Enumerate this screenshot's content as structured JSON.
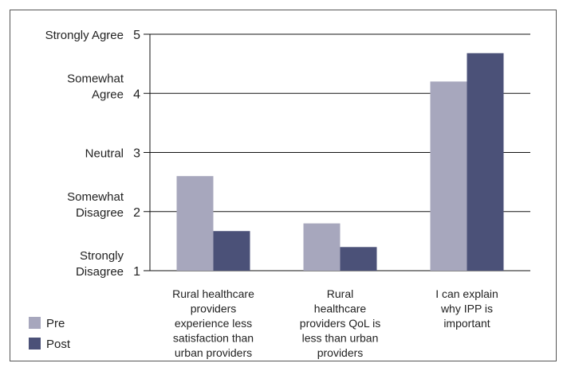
{
  "chart_data": {
    "type": "bar",
    "categories": [
      "Rural healthcare providers experience less satisfaction than urban providers",
      "Rural healthcare providers QoL is less than urban providers",
      "I can explain why IPP is important"
    ],
    "category_lines": [
      [
        "Rural healthcare",
        "providers",
        "experience less",
        "satisfaction than",
        "urban providers"
      ],
      [
        "Rural",
        "healthcare",
        "providers QoL is",
        "less than urban",
        "providers"
      ],
      [
        "I can explain",
        "why IPP is",
        "important"
      ]
    ],
    "series": [
      {
        "name": "Pre",
        "values": [
          2.6,
          1.8,
          4.2
        ],
        "color": "#a7a7bd"
      },
      {
        "name": "Post",
        "values": [
          1.67,
          1.4,
          4.68
        ],
        "color": "#4b5178"
      }
    ],
    "ylim": [
      1,
      5
    ],
    "yticks": [
      "1",
      "2",
      "3",
      "4",
      "5"
    ],
    "y_category_labels": [
      {
        "value": 1,
        "lines": [
          "Strongly",
          "Disagree"
        ]
      },
      {
        "value": 2,
        "lines": [
          "Somewhat",
          "Disagree"
        ]
      },
      {
        "value": 3,
        "lines": [
          "Neutral"
        ]
      },
      {
        "value": 4,
        "lines": [
          "Somewhat",
          "Agree"
        ]
      },
      {
        "value": 5,
        "lines": [
          "Strongly Agree"
        ]
      }
    ],
    "grid": true,
    "legend": "bottom-left"
  }
}
